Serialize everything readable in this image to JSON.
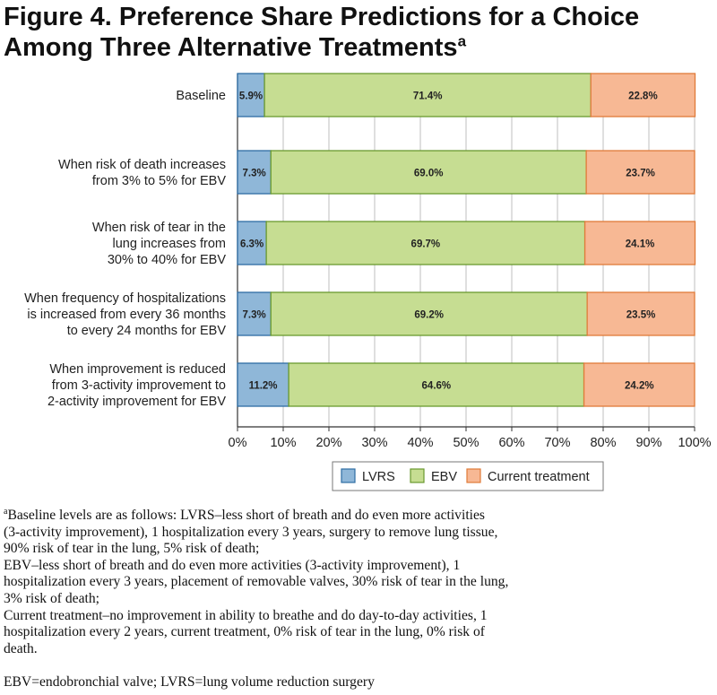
{
  "title": "Figure 4. Preference Share Predictions for a Choice Among Three Alternative Treatments",
  "title_sup": "a",
  "chart_data": {
    "type": "bar",
    "orientation": "horizontal",
    "stacked": true,
    "categories": [
      [
        "Baseline"
      ],
      [
        "When risk of death increases",
        "from 3% to 5% for EBV"
      ],
      [
        "When risk of tear in the",
        "lung increases from",
        "30% to 40% for EBV"
      ],
      [
        "When frequency of hospitalizations",
        "is increased from every 36 months",
        "to every 24 months for EBV"
      ],
      [
        "When improvement is reduced",
        "from 3-activity improvement to",
        "2-activity improvement for EBV"
      ]
    ],
    "series": [
      {
        "name": "LVRS",
        "color": "#8fb7d8",
        "edge": "#2e6da4",
        "values": [
          5.9,
          7.3,
          6.3,
          7.3,
          11.2
        ],
        "labels": [
          "5.9%",
          "7.3%",
          "6.3%",
          "7.3%",
          "11.2%"
        ]
      },
      {
        "name": "EBV",
        "color": "#c6dd92",
        "edge": "#6a9a2f",
        "values": [
          71.4,
          69.0,
          69.7,
          69.2,
          64.6
        ],
        "labels": [
          "71.4%",
          "69.0%",
          "69.7%",
          "69.2%",
          "64.6%"
        ]
      },
      {
        "name": "Current treatment",
        "color": "#f7b894",
        "edge": "#e07b39",
        "values": [
          22.8,
          23.7,
          24.1,
          23.5,
          24.2
        ],
        "labels": [
          "22.8%",
          "23.7%",
          "24.1%",
          "23.5%",
          "24.2%"
        ]
      }
    ],
    "xlim": [
      0,
      100
    ],
    "xticks": [
      "0%",
      "10%",
      "20%",
      "30%",
      "40%",
      "50%",
      "60%",
      "70%",
      "80%",
      "90%",
      "100%"
    ],
    "grid": true,
    "legend": "bottom-center"
  },
  "footnote": {
    "marker": "a",
    "lines": [
      "Baseline levels are as follows: LVRS–less short of breath and do even more activities",
      "(3-activity improvement), 1 hospitalization every 3 years, surgery to remove lung tissue,",
      "90% risk of tear in the lung, 5% risk of death;",
      "EBV–less short of breath and do even more activities (3-activity improvement), 1",
      "hospitalization every 3 years, placement of removable valves, 30% risk of tear in the lung,",
      "3% risk of death;",
      "Current treatment–no improvement in ability to breathe and do day-to-day activities, 1",
      "hospitalization every 2 years, current treatment, 0% risk of tear in the lung, 0% risk of",
      "death."
    ],
    "abbreviations": "EBV=endobronchial valve; LVRS=lung volume reduction surgery"
  }
}
